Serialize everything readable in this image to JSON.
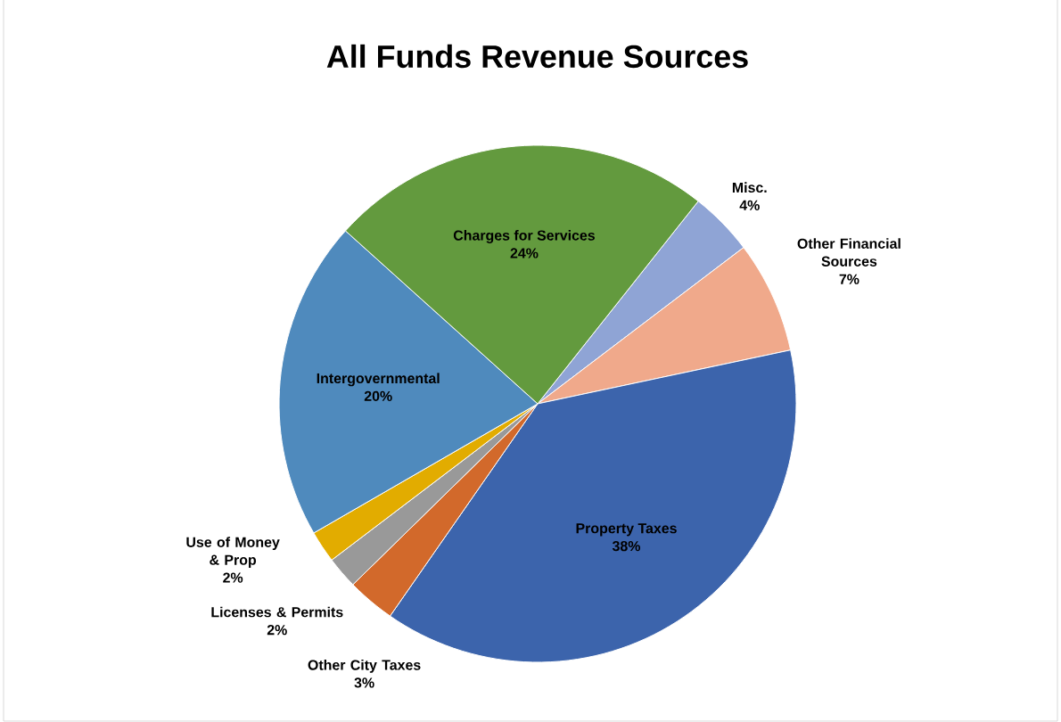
{
  "chart_data": {
    "type": "pie",
    "title": "All Funds Revenue Sources",
    "categories": [
      "Misc.",
      "Other Financial Sources",
      "Property Taxes",
      "Other City Taxes",
      "Licenses & Permits",
      "Use of Money & Prop",
      "Intergovernmental",
      "Charges for Services"
    ],
    "values": [
      4,
      7,
      38,
      3,
      2,
      2,
      20,
      24
    ],
    "colors": [
      "#8fa4d5",
      "#f0a98b",
      "#3c64ac",
      "#d2692b",
      "#999999",
      "#e2ac00",
      "#4f8abd",
      "#639a3e"
    ],
    "data_labels": true,
    "value_labels": [
      "4%",
      "7%",
      "38%",
      "3%",
      "2%",
      "2%",
      "20%",
      "24%"
    ]
  }
}
